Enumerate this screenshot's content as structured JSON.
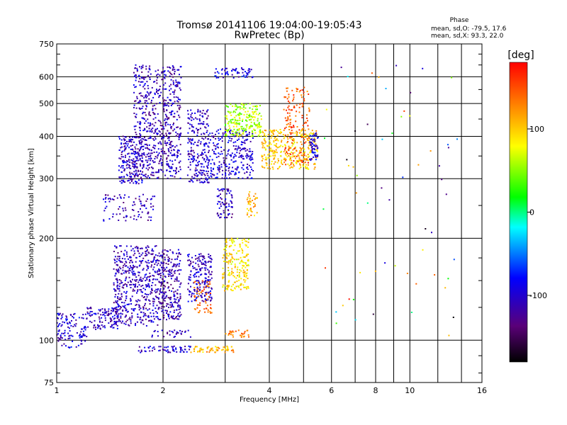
{
  "chart_data": {
    "type": "scatter",
    "title": "Tromsø 20141106 19:04:00-19:05:43",
    "subtitle": "RwPretec (Bp)",
    "xlabel": "Frequency [MHz]",
    "ylabel": "Stationary phase Virtual Height [km]",
    "x_scale": "log",
    "y_scale": "log",
    "xlim": [
      1,
      16
    ],
    "ylim": [
      75,
      750
    ],
    "x_ticks": [
      1,
      2,
      4,
      6,
      8,
      10,
      16
    ],
    "x_tick_labels": [
      "1",
      "2",
      "4",
      "6",
      "8",
      "10",
      "16"
    ],
    "y_ticks": [
      75,
      100,
      200,
      300,
      400,
      500,
      600,
      750
    ],
    "y_tick_labels": [
      "75",
      "100",
      "200",
      "300",
      "400",
      "500",
      "600",
      "750"
    ],
    "x_minor_ticks": [
      3,
      5,
      7,
      9,
      12,
      14
    ],
    "y_minor_ticks": [
      80,
      90,
      125,
      150,
      175,
      250,
      350,
      450,
      550,
      650,
      700
    ],
    "grid": true,
    "info": {
      "heading": "Phase",
      "line1": "mean, sd,O: -79.5, 17.6",
      "line2": "mean, sd,X:  93.3, 22.0"
    },
    "colorbar": {
      "label": "[deg]",
      "range": [
        -180,
        180
      ],
      "ticks": [
        100,
        0,
        -100
      ],
      "tick_labels": [
        "100",
        "0",
        "-100"
      ],
      "colormap": "rainbow",
      "colors": [
        "#000000",
        "#5a0078",
        "#0000ff",
        "#00ffff",
        "#00ff00",
        "#ffff00",
        "#ff8000",
        "#ff0000"
      ]
    },
    "series": [
      {
        "clusters": [
          {
            "f": [
              1.0,
              1.22
            ],
            "h": [
              95,
              120
            ],
            "phase": -100,
            "n": 120
          },
          {
            "f": [
              1.22,
              1.5
            ],
            "h": [
              107,
              125
            ],
            "phase": -105,
            "n": 110
          },
          {
            "f": [
              1.45,
              1.95
            ],
            "h": [
              110,
              190
            ],
            "phase": -110,
            "n": 520
          },
          {
            "f": [
              1.95,
              2.25
            ],
            "h": [
              115,
              185
            ],
            "phase": -112,
            "n": 260
          },
          {
            "f": [
              2.35,
              2.75
            ],
            "h": [
              130,
              180
            ],
            "phase": -105,
            "n": 200
          },
          {
            "f": [
              2.45,
              2.75
            ],
            "h": [
              120,
              150
            ],
            "phase": 140,
            "n": 60
          },
          {
            "f": [
              2.95,
              3.5
            ],
            "h": [
              140,
              200
            ],
            "phase": 90,
            "n": 200
          },
          {
            "f": [
              1.65,
              2.25
            ],
            "h": [
              300,
              650
            ],
            "phase": -110,
            "n": 650
          },
          {
            "f": [
              1.5,
              1.75
            ],
            "h": [
              290,
              400
            ],
            "phase": -105,
            "n": 200
          },
          {
            "f": [
              2.35,
              2.7
            ],
            "h": [
              290,
              480
            ],
            "phase": -105,
            "n": 230
          },
          {
            "f": [
              2.7,
              3.6
            ],
            "h": [
              300,
              420
            ],
            "phase": -100,
            "n": 260
          },
          {
            "f": [
              3.0,
              3.8
            ],
            "h": [
              400,
              500
            ],
            "phase": 60,
            "n": 220
          },
          {
            "f": [
              3.8,
              5.5
            ],
            "h": [
              320,
              420
            ],
            "phase": 100,
            "n": 320
          },
          {
            "f": [
              4.4,
              5.2
            ],
            "h": [
              330,
              560
            ],
            "phase": 145,
            "n": 160
          },
          {
            "f": [
              5.2,
              5.5
            ],
            "h": [
              340,
              410
            ],
            "phase": -95,
            "n": 60
          },
          {
            "f": [
              2.85,
              3.15
            ],
            "h": [
              230,
              280
            ],
            "phase": -110,
            "n": 70
          },
          {
            "f": [
              3.45,
              3.7
            ],
            "h": [
              230,
              280
            ],
            "phase": 110,
            "n": 40
          },
          {
            "f": [
              1.35,
              1.9
            ],
            "h": [
              225,
              270
            ],
            "phase": -110,
            "n": 90
          },
          {
            "f": [
              2.8,
              3.6
            ],
            "h": [
              595,
              640
            ],
            "phase": -95,
            "n": 60
          },
          {
            "f": [
              1.7,
              2.4
            ],
            "h": [
              92,
              96
            ],
            "phase": -100,
            "n": 60
          },
          {
            "f": [
              2.4,
              3.2
            ],
            "h": [
              92,
              96
            ],
            "phase": 110,
            "n": 60
          },
          {
            "f": [
              1.85,
              2.4
            ],
            "h": [
              102,
              107
            ],
            "phase": -105,
            "n": 30
          },
          {
            "f": [
              3.0,
              3.5
            ],
            "h": [
              102,
              107
            ],
            "phase": 140,
            "n": 30
          },
          {
            "f": [
              5.6,
              14.0
            ],
            "h": [
              100,
              650
            ],
            "phase": 0,
            "n": 60
          }
        ]
      }
    ]
  }
}
